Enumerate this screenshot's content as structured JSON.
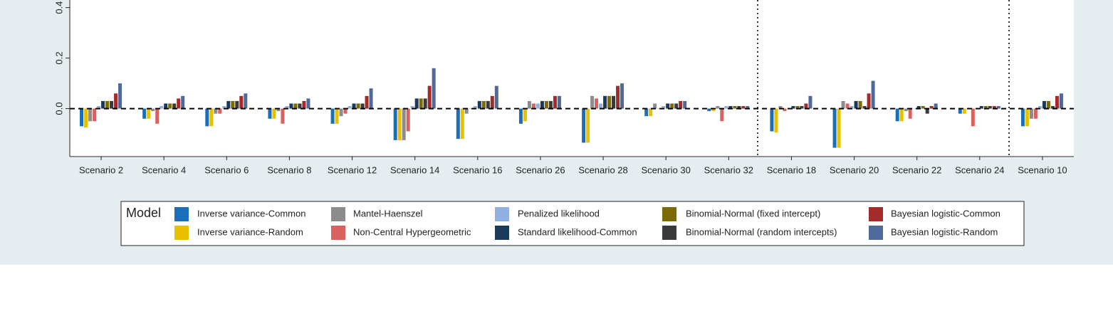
{
  "chart_data": {
    "type": "bar",
    "categories": [
      "Scenario 2",
      "Scenario 4",
      "Scenario 6",
      "Scenario 8",
      "Scenario 12",
      "Scenario 14",
      "Scenario 16",
      "Scenario 26",
      "Scenario 28",
      "Scenario 30",
      "Scenario 32",
      "Scenario 18",
      "Scenario 20",
      "Scenario 22",
      "Scenario 24",
      "Scenario 10"
    ],
    "series": [
      {
        "name": "Inverse variance-Common",
        "color": "#1a6fb8",
        "values": [
          -0.07,
          -0.04,
          -0.07,
          -0.04,
          -0.06,
          -0.125,
          -0.12,
          -0.06,
          -0.135,
          -0.03,
          -0.01,
          -0.09,
          -0.155,
          -0.05,
          -0.02,
          -0.07
        ]
      },
      {
        "name": "Inverse variance-Random",
        "color": "#e8c000",
        "values": [
          -0.075,
          -0.04,
          -0.07,
          -0.04,
          -0.06,
          -0.125,
          -0.12,
          -0.05,
          -0.135,
          -0.03,
          -0.01,
          -0.095,
          -0.155,
          -0.05,
          -0.02,
          -0.07
        ]
      },
      {
        "name": "Mantel-Haenszel",
        "color": "#8c8c8c",
        "values": [
          -0.05,
          -0.01,
          -0.02,
          -0.01,
          -0.03,
          -0.125,
          -0.02,
          0.03,
          0.05,
          0.02,
          0.01,
          0.01,
          0.03,
          -0.01,
          0.0,
          -0.04
        ]
      },
      {
        "name": "Non-Central Hypergeometric",
        "color": "#d9625e",
        "values": [
          -0.05,
          -0.06,
          -0.02,
          -0.06,
          -0.02,
          -0.09,
          0.0,
          0.02,
          0.04,
          0.0,
          -0.05,
          -0.01,
          0.02,
          -0.04,
          -0.07,
          -0.04
        ]
      },
      {
        "name": "Penalized likelihood",
        "color": "#8fb0e0",
        "values": [
          0.01,
          0.01,
          0.01,
          0.01,
          0.01,
          0.01,
          0.01,
          0.02,
          0.02,
          0.01,
          0.01,
          0.0,
          0.01,
          0.0,
          0.0,
          0.01
        ]
      },
      {
        "name": "Standard likelihood-Common",
        "color": "#1a3a5c",
        "values": [
          0.03,
          0.02,
          0.03,
          0.02,
          0.02,
          0.04,
          0.03,
          0.03,
          0.05,
          0.02,
          0.01,
          0.01,
          0.03,
          0.01,
          0.01,
          0.03
        ]
      },
      {
        "name": "Binomial-Normal (fixed intercept)",
        "color": "#7d6b00",
        "values": [
          0.03,
          0.02,
          0.03,
          0.02,
          0.02,
          0.04,
          0.03,
          0.03,
          0.05,
          0.02,
          0.01,
          0.01,
          0.03,
          0.01,
          0.01,
          0.03
        ]
      },
      {
        "name": "Binomial-Normal (random intercepts)",
        "color": "#3a3a3a",
        "values": [
          0.03,
          0.02,
          0.03,
          0.02,
          0.02,
          0.04,
          0.03,
          0.03,
          0.05,
          0.02,
          0.01,
          0.01,
          0.01,
          -0.02,
          0.01,
          0.01
        ]
      },
      {
        "name": "Bayesian logistic-Common",
        "color": "#a52a2a",
        "values": [
          0.06,
          0.04,
          0.05,
          0.03,
          0.05,
          0.09,
          0.05,
          0.05,
          0.09,
          0.03,
          0.01,
          0.02,
          0.06,
          0.01,
          0.01,
          0.05
        ]
      },
      {
        "name": "Bayesian logistic-Random",
        "color": "#4f6a9a",
        "values": [
          0.1,
          0.05,
          0.06,
          0.04,
          0.08,
          0.16,
          0.09,
          0.05,
          0.1,
          0.03,
          0.01,
          0.05,
          0.11,
          0.02,
          0.01,
          0.06
        ]
      }
    ],
    "ylim": [
      -0.19,
      0.43
    ],
    "yticks": [
      {
        "value": 0,
        "label": "0.0"
      },
      0.2,
      0.4
    ],
    "legend_title": "Model",
    "legend": "bottom"
  }
}
